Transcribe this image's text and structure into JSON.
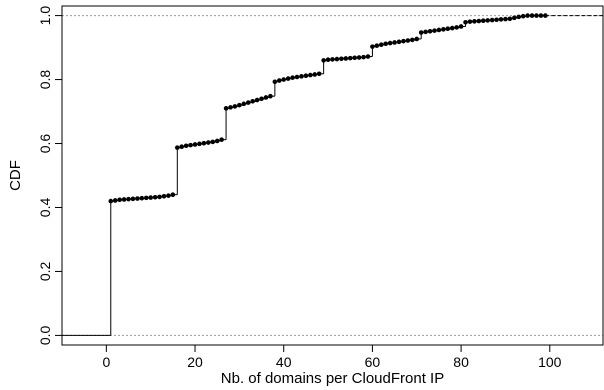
{
  "chart_data": {
    "type": "line",
    "title": "",
    "xlabel": "Nb. of domains per CloudFront IP",
    "ylabel": "CDF",
    "xlim": [
      -10,
      112
    ],
    "ylim": [
      -0.03,
      1.03
    ],
    "x_ticks": [
      0,
      20,
      40,
      60,
      80,
      100
    ],
    "y_ticks": [
      0.0,
      0.2,
      0.4,
      0.6,
      0.8,
      1.0
    ],
    "x_tick_labels": [
      "0",
      "20",
      "40",
      "60",
      "80",
      "100"
    ],
    "y_tick_labels": [
      "0.0",
      "0.2",
      "0.4",
      "0.6",
      "0.8",
      "1.0"
    ],
    "reference_lines_y": [
      0.0,
      1.0
    ],
    "grid": false,
    "legend": "none",
    "line_color": "#000000",
    "reference_line_color": "#999999",
    "series": [
      {
        "x": [
          1,
          2,
          3,
          4,
          5,
          6,
          7,
          8,
          9,
          10,
          11,
          12,
          13,
          14,
          15,
          16,
          17,
          18,
          19,
          20,
          21,
          22,
          23,
          24,
          25,
          26,
          27,
          28,
          29,
          30,
          31,
          32,
          33,
          34,
          35,
          36,
          37,
          38,
          39,
          40,
          41,
          42,
          43,
          44,
          45,
          46,
          47,
          48,
          49,
          50,
          51,
          52,
          53,
          54,
          55,
          56,
          57,
          58,
          59,
          60,
          61,
          62,
          63,
          64,
          65,
          66,
          67,
          68,
          69,
          70,
          71,
          72,
          73,
          74,
          75,
          76,
          77,
          78,
          79,
          80,
          81,
          82,
          83,
          84,
          85,
          86,
          87,
          88,
          89,
          90,
          91,
          92,
          93,
          94,
          95,
          96,
          97,
          98,
          99
        ],
        "y": [
          0.42,
          0.422,
          0.424,
          0.425,
          0.426,
          0.427,
          0.428,
          0.429,
          0.43,
          0.431,
          0.432,
          0.433,
          0.435,
          0.437,
          0.44,
          0.587,
          0.59,
          0.593,
          0.595,
          0.597,
          0.599,
          0.601,
          0.603,
          0.605,
          0.608,
          0.612,
          0.71,
          0.713,
          0.716,
          0.72,
          0.724,
          0.728,
          0.732,
          0.736,
          0.74,
          0.744,
          0.748,
          0.793,
          0.797,
          0.8,
          0.803,
          0.806,
          0.808,
          0.81,
          0.812,
          0.814,
          0.816,
          0.818,
          0.86,
          0.862,
          0.863,
          0.864,
          0.865,
          0.866,
          0.867,
          0.868,
          0.869,
          0.87,
          0.872,
          0.903,
          0.906,
          0.909,
          0.912,
          0.914,
          0.916,
          0.918,
          0.92,
          0.922,
          0.924,
          0.927,
          0.947,
          0.949,
          0.951,
          0.953,
          0.955,
          0.957,
          0.959,
          0.961,
          0.963,
          0.966,
          0.979,
          0.981,
          0.982,
          0.983,
          0.984,
          0.985,
          0.986,
          0.987,
          0.988,
          0.989,
          0.99,
          0.993,
          0.996,
          0.998,
          1.0,
          1.0,
          1.0,
          1.0,
          1.0
        ]
      }
    ],
    "start_segment": {
      "x": [
        -10,
        1
      ],
      "y": [
        0,
        0
      ]
    },
    "end_segment": {
      "x": [
        99,
        112
      ],
      "y": [
        1,
        1
      ]
    }
  }
}
